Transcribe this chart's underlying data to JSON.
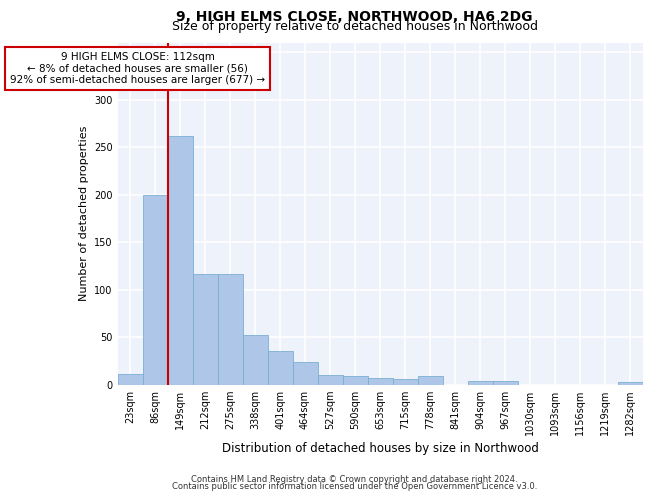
{
  "title1": "9, HIGH ELMS CLOSE, NORTHWOOD, HA6 2DG",
  "title2": "Size of property relative to detached houses in Northwood",
  "xlabel": "Distribution of detached houses by size in Northwood",
  "ylabel": "Number of detached properties",
  "categories": [
    "23sqm",
    "86sqm",
    "149sqm",
    "212sqm",
    "275sqm",
    "338sqm",
    "401sqm",
    "464sqm",
    "527sqm",
    "590sqm",
    "653sqm",
    "715sqm",
    "778sqm",
    "841sqm",
    "904sqm",
    "967sqm",
    "1030sqm",
    "1093sqm",
    "1156sqm",
    "1219sqm",
    "1282sqm"
  ],
  "values": [
    12,
    200,
    262,
    117,
    117,
    53,
    36,
    24,
    10,
    9,
    7,
    6,
    9,
    0,
    4,
    4,
    0,
    0,
    0,
    0,
    3
  ],
  "bar_color": "#aec6e8",
  "bar_edge_color": "#7bafd4",
  "vline_color": "#cc0000",
  "vline_pos": 1.5,
  "annotation_text": "9 HIGH ELMS CLOSE: 112sqm\n← 8% of detached houses are smaller (56)\n92% of semi-detached houses are larger (677) →",
  "annotation_box_color": "#ffffff",
  "annotation_box_edge": "#cc0000",
  "ylim": [
    0,
    360
  ],
  "yticks": [
    0,
    50,
    100,
    150,
    200,
    250,
    300,
    350
  ],
  "footer1": "Contains HM Land Registry data © Crown copyright and database right 2024.",
  "footer2": "Contains public sector information licensed under the Open Government Licence v3.0.",
  "bg_color": "#eef2fb",
  "grid_color": "#ffffff",
  "title1_fontsize": 10,
  "title2_fontsize": 9,
  "ylabel_fontsize": 8,
  "xlabel_fontsize": 8.5,
  "tick_fontsize": 7,
  "annot_fontsize": 7.5,
  "footer_fontsize": 6
}
